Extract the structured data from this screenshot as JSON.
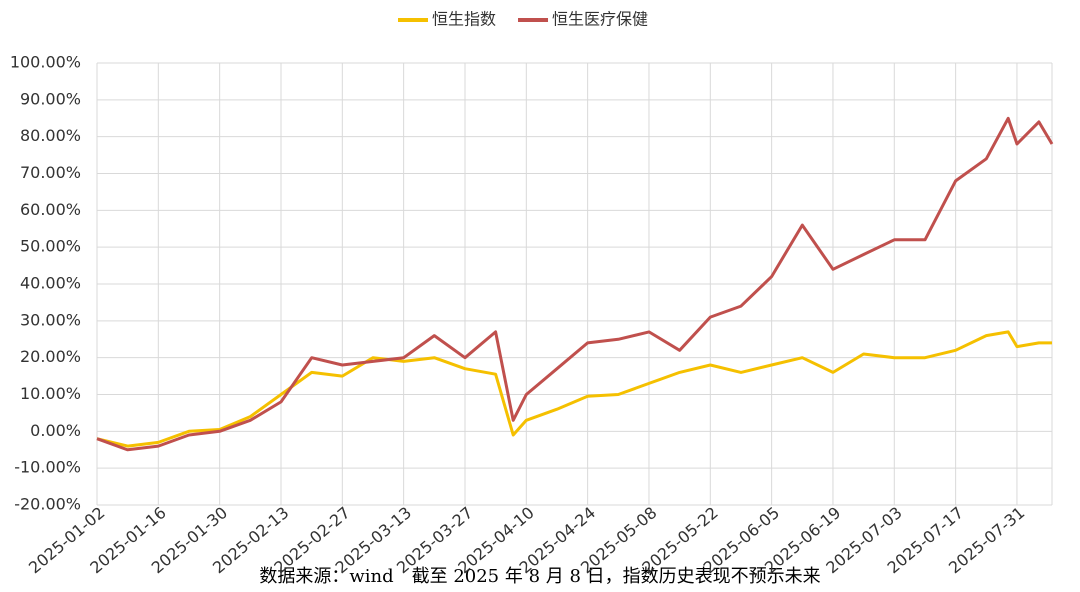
{
  "chart_data": {
    "type": "line",
    "x": [
      "2025-01-02",
      "2025-01-09",
      "2025-01-16",
      "2025-01-23",
      "2025-01-30",
      "2025-02-06",
      "2025-02-13",
      "2025-02-20",
      "2025-02-27",
      "2025-03-06",
      "2025-03-13",
      "2025-03-20",
      "2025-03-27",
      "2025-04-03",
      "2025-04-07",
      "2025-04-10",
      "2025-04-17",
      "2025-04-24",
      "2025-05-01",
      "2025-05-08",
      "2025-05-15",
      "2025-05-22",
      "2025-05-29",
      "2025-06-05",
      "2025-06-12",
      "2025-06-19",
      "2025-06-26",
      "2025-07-03",
      "2025-07-10",
      "2025-07-17",
      "2025-07-24",
      "2025-07-29",
      "2025-07-31",
      "2025-08-05",
      "2025-08-08"
    ],
    "series": [
      {
        "name": "恒生指数",
        "color": "#f5c000",
        "values": [
          -2,
          -4,
          -3,
          0,
          0.5,
          4,
          10,
          16,
          15,
          20,
          19,
          20,
          17,
          15.5,
          -1,
          3,
          6,
          9.5,
          10,
          13,
          16,
          18,
          16,
          18,
          20,
          16,
          21,
          20,
          20,
          22,
          26,
          27,
          23,
          24,
          24
        ]
      },
      {
        "name": "恒生医疗保健",
        "color": "#c0504d",
        "values": [
          -2,
          -5,
          -4,
          -1,
          0,
          3,
          8,
          20,
          18,
          19,
          20,
          26,
          20,
          27,
          3,
          10,
          17,
          24,
          25,
          27,
          22,
          31,
          34,
          42,
          56,
          44,
          48,
          52,
          52,
          68,
          74,
          85,
          78,
          84,
          78
        ]
      }
    ],
    "xlim": [
      "2025-01-02",
      "2025-08-08"
    ],
    "xticks": [
      "2025-01-02",
      "2025-01-16",
      "2025-01-30",
      "2025-02-13",
      "2025-02-27",
      "2025-03-13",
      "2025-03-27",
      "2025-04-10",
      "2025-04-24",
      "2025-05-08",
      "2025-05-22",
      "2025-06-05",
      "2025-06-19",
      "2025-07-03",
      "2025-07-17",
      "2025-07-31"
    ],
    "ylim": [
      -20,
      100
    ],
    "yticks": [
      {
        "value": -20,
        "label": "-20.00%"
      },
      {
        "value": -10,
        "label": "-10.00%"
      },
      {
        "value": 0,
        "label": "0.00%"
      },
      {
        "value": 10,
        "label": "10.00%"
      },
      {
        "value": 20,
        "label": "20.00%"
      },
      {
        "value": 30,
        "label": "30.00%"
      },
      {
        "value": 40,
        "label": "40.00%"
      },
      {
        "value": 50,
        "label": "50.00%"
      },
      {
        "value": 60,
        "label": "60.00%"
      },
      {
        "value": 70,
        "label": "70.00%"
      },
      {
        "value": 80,
        "label": "80.00%"
      },
      {
        "value": 90,
        "label": "90.00%"
      },
      {
        "value": 100,
        "label": "100.00%"
      }
    ],
    "grid": true,
    "legend": "top",
    "note": "数据来源：wind　截至 2025 年 8 月 8 日，指数历史表现不预示未来"
  }
}
